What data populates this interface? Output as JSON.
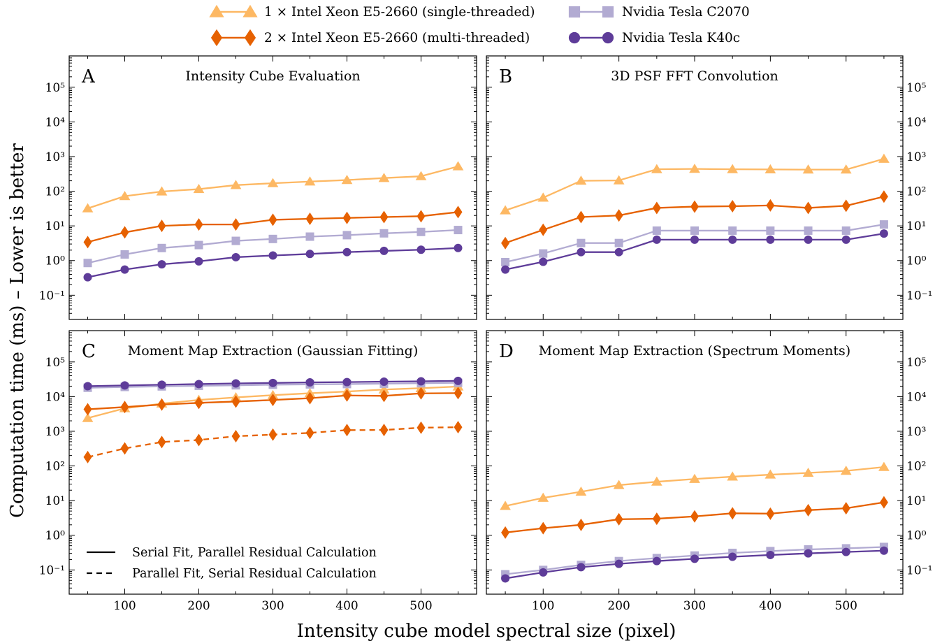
{
  "figure": {
    "ylabel": "Computation time (ms) – Lower is better",
    "xlabel": "Intensity cube model spectral size (pixel)"
  },
  "legend": [
    {
      "name": "1 × Intel Xeon E5-2660 (single-threaded)",
      "marker": "triangle",
      "color": "#fdb863"
    },
    {
      "name": "2 × Intel Xeon E5-2660 (multi-threaded)",
      "marker": "diamond",
      "color": "#e66101"
    },
    {
      "name": "Nvidia Tesla C2070",
      "marker": "square",
      "color": "#b2abd2"
    },
    {
      "name": "Nvidia Tesla K40c",
      "marker": "circle",
      "color": "#5e3c99"
    }
  ],
  "panel_c_legend": [
    {
      "label": "Serial Fit, Parallel Residual Calculation",
      "style": "solid"
    },
    {
      "label": "Parallel Fit, Serial Residual Calculation",
      "style": "dashed"
    }
  ],
  "chart_data": [
    {
      "type": "line",
      "letter": "A",
      "title": "Intensity Cube Evaluation",
      "yscale": "log",
      "ylim": [
        0.02,
        800000
      ],
      "xlim": [
        25,
        575
      ],
      "y_ticks_side": "left",
      "x": [
        50,
        100,
        150,
        200,
        250,
        300,
        350,
        400,
        450,
        500,
        550
      ],
      "series": [
        {
          "name": "1 × Intel Xeon E5-2660 (single-threaded)",
          "style": "solid",
          "values": [
            32,
            72,
            98,
            115,
            150,
            170,
            190,
            210,
            240,
            270,
            520
          ]
        },
        {
          "name": "2 × Intel Xeon E5-2660 (multi-threaded)",
          "style": "solid",
          "values": [
            3.4,
            6.5,
            10,
            11,
            11,
            15,
            16,
            17,
            18,
            19,
            25
          ]
        },
        {
          "name": "Nvidia Tesla C2070",
          "style": "solid",
          "values": [
            0.85,
            1.5,
            2.3,
            2.8,
            3.7,
            4.2,
            4.9,
            5.4,
            6.1,
            6.7,
            7.6
          ]
        },
        {
          "name": "Nvidia Tesla K40c",
          "style": "solid",
          "values": [
            0.33,
            0.55,
            0.78,
            0.95,
            1.25,
            1.4,
            1.55,
            1.75,
            1.9,
            2.05,
            2.3
          ]
        }
      ]
    },
    {
      "type": "line",
      "letter": "B",
      "title": "3D PSF FFT Convolution",
      "yscale": "log",
      "ylim": [
        0.02,
        800000
      ],
      "xlim": [
        25,
        575
      ],
      "y_ticks_side": "right",
      "x": [
        50,
        100,
        150,
        200,
        250,
        300,
        350,
        400,
        450,
        500,
        550
      ],
      "series": [
        {
          "name": "1 × Intel Xeon E5-2660 (single-threaded)",
          "style": "solid",
          "values": [
            28,
            65,
            200,
            205,
            430,
            440,
            430,
            425,
            420,
            420,
            860
          ]
        },
        {
          "name": "2 × Intel Xeon E5-2660 (multi-threaded)",
          "style": "solid",
          "values": [
            3.2,
            7.7,
            18,
            20,
            33,
            36,
            37,
            39,
            33,
            38,
            70
          ]
        },
        {
          "name": "Nvidia Tesla C2070",
          "style": "solid",
          "values": [
            0.9,
            1.6,
            3.2,
            3.2,
            7.3,
            7.3,
            7.3,
            7.3,
            7.3,
            7.3,
            11
          ]
        },
        {
          "name": "Nvidia Tesla K40c",
          "style": "solid",
          "values": [
            0.55,
            0.92,
            1.75,
            1.75,
            4.0,
            4.0,
            4.0,
            4.0,
            4.0,
            4.0,
            6.0
          ]
        }
      ]
    },
    {
      "type": "line",
      "letter": "C",
      "title": "Moment Map Extraction (Gaussian Fitting)",
      "yscale": "log",
      "ylim": [
        0.02,
        800000
      ],
      "xlim": [
        25,
        575
      ],
      "y_ticks_side": "left",
      "x": [
        50,
        100,
        150,
        200,
        250,
        300,
        350,
        400,
        450,
        500,
        550
      ],
      "series": [
        {
          "name": "1 × Intel Xeon E5-2660 (single-threaded)",
          "style": "solid",
          "values": [
            2400,
            4600,
            6300,
            8000,
            9500,
            11000,
            12500,
            14000,
            16000,
            17500,
            19500
          ]
        },
        {
          "name": "2 × Intel Xeon E5-2660 (multi-threaded)",
          "style": "solid",
          "values": [
            4300,
            5000,
            5900,
            6600,
            7200,
            8000,
            9000,
            10800,
            10500,
            12400,
            12600
          ]
        },
        {
          "name": "2 × Intel Xeon E5-2660 (multi-threaded)",
          "style": "dashed",
          "values": [
            180,
            320,
            490,
            560,
            720,
            800,
            900,
            1080,
            1090,
            1270,
            1310
          ]
        },
        {
          "name": "Nvidia Tesla C2070",
          "style": "solid",
          "values": [
            18000,
            19000,
            19700,
            20500,
            21200,
            22000,
            22500,
            23000,
            23600,
            24300,
            25000
          ]
        },
        {
          "name": "Nvidia Tesla K40c",
          "style": "solid",
          "values": [
            20000,
            21000,
            22000,
            23000,
            24000,
            24800,
            25700,
            26200,
            27000,
            27600,
            28500
          ]
        }
      ]
    },
    {
      "type": "line",
      "letter": "D",
      "title": "Moment Map Extraction (Spectrum Moments)",
      "yscale": "log",
      "ylim": [
        0.02,
        800000
      ],
      "xlim": [
        25,
        575
      ],
      "y_ticks_side": "right",
      "x": [
        50,
        100,
        150,
        200,
        250,
        300,
        350,
        400,
        450,
        500,
        550
      ],
      "series": [
        {
          "name": "1 × Intel Xeon E5-2660 (single-threaded)",
          "style": "solid",
          "values": [
            7,
            12,
            18,
            28,
            35,
            42,
            49,
            56,
            63,
            72,
            93
          ]
        },
        {
          "name": "2 × Intel Xeon E5-2660 (multi-threaded)",
          "style": "solid",
          "values": [
            1.2,
            1.6,
            2.0,
            2.9,
            3.0,
            3.5,
            4.3,
            4.2,
            5.3,
            6.0,
            8.9
          ]
        },
        {
          "name": "Nvidia Tesla C2070",
          "style": "solid",
          "values": [
            0.075,
            0.1,
            0.14,
            0.18,
            0.22,
            0.26,
            0.31,
            0.35,
            0.39,
            0.42,
            0.46
          ]
        },
        {
          "name": "Nvidia Tesla K40c",
          "style": "solid",
          "values": [
            0.057,
            0.085,
            0.12,
            0.15,
            0.18,
            0.21,
            0.24,
            0.27,
            0.3,
            0.33,
            0.36
          ]
        }
      ]
    }
  ]
}
